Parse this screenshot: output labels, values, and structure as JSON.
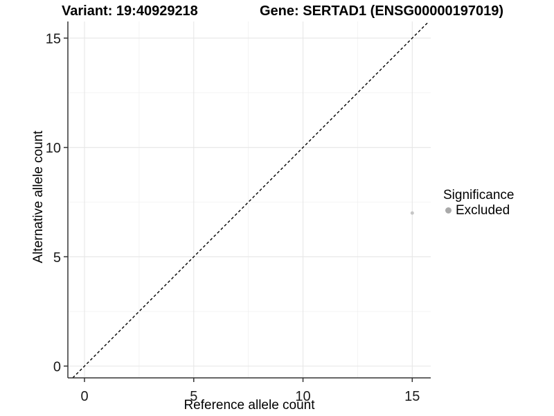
{
  "figure": {
    "title_left": "Variant: 19:40929218",
    "title_right": "Gene: SERTAD1 (ENSG00000197019)"
  },
  "chart_data": {
    "type": "scatter",
    "title": "Variant: 19:40929218 / Gene: SERTAD1 (ENSG00000197019)",
    "xlabel": "Reference allele count",
    "ylabel": "Alternative allele count",
    "xlim": [
      -0.761,
      15.846
    ],
    "ylim": [
      -0.539,
      15.76
    ],
    "x_ticks": [
      0,
      5,
      10,
      15
    ],
    "y_ticks": [
      0,
      5,
      10,
      15
    ],
    "x_minor_ticks": [
      2.5,
      7.5,
      12.5
    ],
    "y_minor_ticks": [
      2.5,
      7.5,
      12.5
    ],
    "grid": "major-and-minor",
    "legend_position": "right",
    "points": [
      {
        "x": 15,
        "y": 7,
        "group": "Excluded"
      }
    ],
    "point_color": "#c6c6c6",
    "identity_line": {
      "kind": "y=x",
      "style": "dashed",
      "color": "#000000"
    },
    "legend": {
      "title": "Significance",
      "items": [
        {
          "label": "Excluded",
          "color": "#a9a9a9"
        }
      ]
    },
    "colors": {
      "axis_line": "#333333",
      "tick_label": "#1a1a1a",
      "major_grid": "#e6e6e6",
      "minor_grid": "#f2f2f2",
      "panel_background": "#ffffff"
    }
  }
}
